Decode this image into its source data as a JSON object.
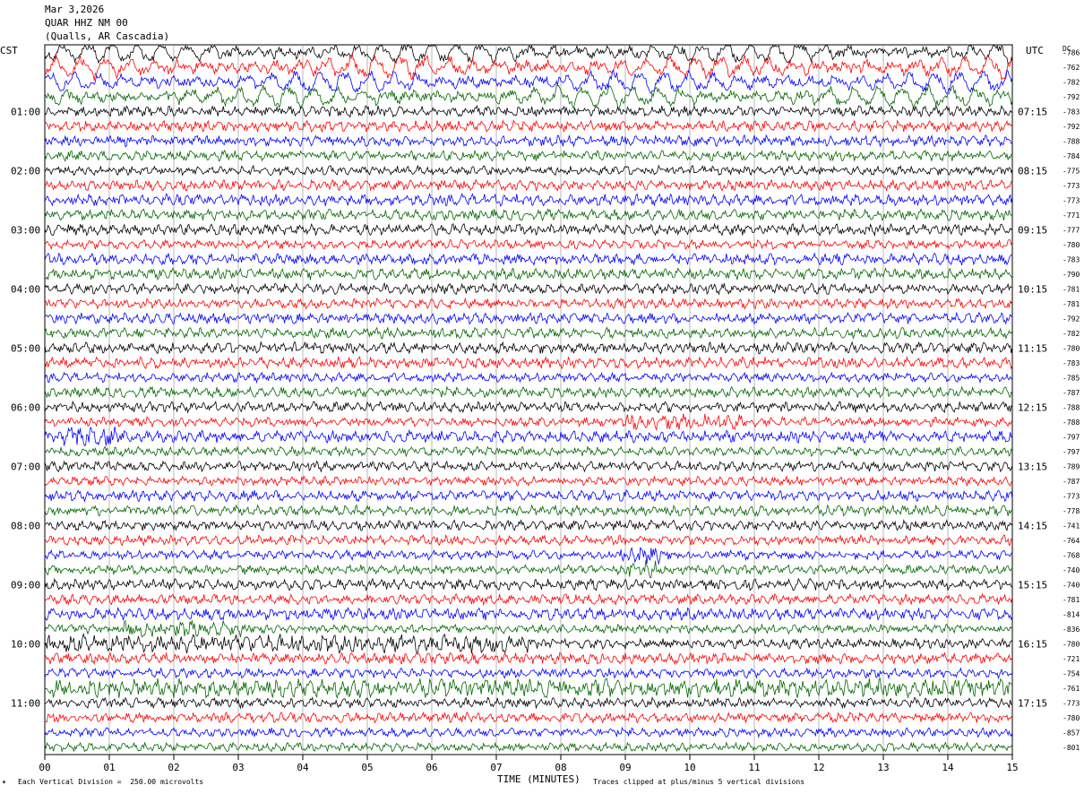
{
  "header": {
    "date": "Mar 3,2026",
    "station": "QUAR HHZ NM 00",
    "location": "(Qualls, AR Cascadia)"
  },
  "left_tz": "CST",
  "right_tz": "UTC",
  "dc_label": "DC",
  "footer": {
    "scale_note": "Each Vertical Division =  250.00 microvolts",
    "clip_note": "Traces clipped at plus/minus 5 vertical divisions"
  },
  "chart_data": {
    "type": "line",
    "title": "",
    "xlabel": "TIME (MINUTES)",
    "ylabel": "",
    "xlim": [
      0,
      15
    ],
    "x_ticks": [
      "00",
      "01",
      "02",
      "03",
      "04",
      "05",
      "06",
      "07",
      "08",
      "09",
      "10",
      "11",
      "12",
      "13",
      "14",
      "15"
    ],
    "grid": true,
    "trace_colors": [
      "#000000",
      "#ff0000",
      "#0000ff",
      "#006600"
    ],
    "left_hour_labels": [
      "01:00",
      "02:00",
      "03:00",
      "04:00",
      "05:00",
      "06:00",
      "07:00",
      "08:00",
      "09:00",
      "10:00",
      "11:00"
    ],
    "right_hour_labels": [
      "07:15",
      "08:15",
      "09:15",
      "10:15",
      "11:15",
      "12:15",
      "13:15",
      "14:15",
      "15:15",
      "16:15",
      "17:15"
    ],
    "dc_offsets": [
      "-786",
      "-762",
      "-782",
      "-792",
      "-783",
      "-792",
      "-788",
      "-784",
      "-775",
      "-773",
      "-773",
      "-771",
      "-777",
      "-780",
      "-783",
      "-790",
      "-781",
      "-781",
      "-792",
      "-782",
      "-780",
      "-783",
      "-785",
      "-787",
      "-788",
      "-788",
      "-797",
      "-797",
      "-789",
      "-787",
      "-773",
      "-778",
      "-741",
      "-764",
      "-768",
      "-740",
      "-740",
      "-781",
      "-814",
      "-836",
      "-780",
      "-721",
      "-754",
      "-761",
      "-773",
      "-780",
      "-857",
      "-801"
    ],
    "trace_count": 48
  }
}
